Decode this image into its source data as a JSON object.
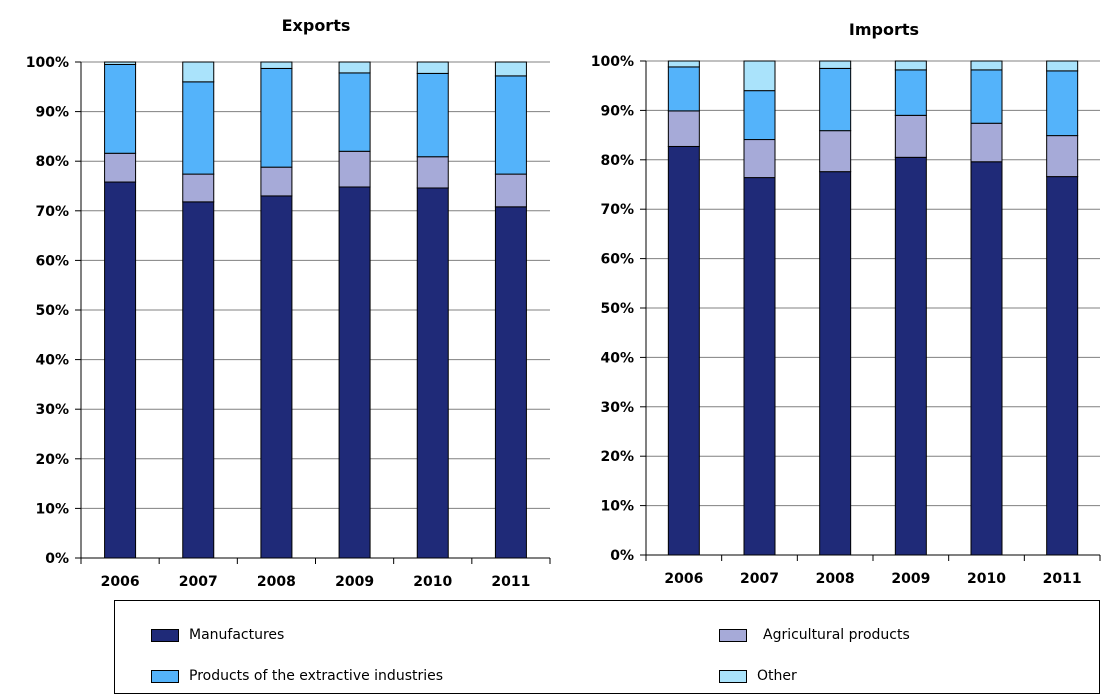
{
  "chart_data": [
    {
      "type": "bar",
      "stacked": true,
      "title": "Exports",
      "categories": [
        "2006",
        "2007",
        "2008",
        "2009",
        "2010",
        "2011"
      ],
      "ylim": [
        0,
        100
      ],
      "yticks": [
        "0%",
        "10%",
        "20%",
        "30%",
        "40%",
        "50%",
        "60%",
        "70%",
        "80%",
        "90%",
        "100%"
      ],
      "grid": true,
      "series": [
        {
          "name": "Manufactures",
          "color": "#1f2a78",
          "values": [
            75.8,
            71.8,
            73.0,
            74.8,
            74.6,
            70.8
          ]
        },
        {
          "name": "Agricultural products",
          "color": "#a6aad8",
          "values": [
            5.8,
            5.6,
            5.8,
            7.2,
            6.3,
            6.6
          ]
        },
        {
          "name": "Products of the extractive industries",
          "color": "#54b3fa",
          "values": [
            17.9,
            18.6,
            19.9,
            15.8,
            16.8,
            19.8
          ]
        },
        {
          "name": "Other",
          "color": "#aae3fb",
          "values": [
            0.5,
            4.0,
            1.3,
            2.2,
            2.3,
            2.8
          ]
        }
      ]
    },
    {
      "type": "bar",
      "stacked": true,
      "title": "Imports",
      "categories": [
        "2006",
        "2007",
        "2008",
        "2009",
        "2010",
        "2011"
      ],
      "ylim": [
        0,
        100
      ],
      "yticks": [
        "0%",
        "10%",
        "20%",
        "30%",
        "40%",
        "50%",
        "60%",
        "70%",
        "80%",
        "90%",
        "100%"
      ],
      "grid": true,
      "series": [
        {
          "name": "Manufactures",
          "color": "#1f2a78",
          "values": [
            82.7,
            76.4,
            77.6,
            80.5,
            79.6,
            76.6
          ]
        },
        {
          "name": "Agricultural products",
          "color": "#a6aad8",
          "values": [
            7.2,
            7.7,
            8.3,
            8.5,
            7.8,
            8.3
          ]
        },
        {
          "name": "Products of the extractive industries",
          "color": "#54b3fa",
          "values": [
            8.9,
            9.9,
            12.6,
            9.2,
            10.8,
            13.1
          ]
        },
        {
          "name": "Other",
          "color": "#aae3fb",
          "values": [
            1.2,
            6.0,
            1.5,
            1.8,
            1.8,
            2.0
          ]
        }
      ]
    }
  ],
  "legend": {
    "items": [
      {
        "label": "Manufactures",
        "color": "#1f2a78"
      },
      {
        "label": "Agricultural products",
        "color": "#a6aad8"
      },
      {
        "label": "Products of the extractive industries",
        "color": "#54b3fa"
      },
      {
        "label": "Other",
        "color": "#aae3fb"
      }
    ]
  }
}
